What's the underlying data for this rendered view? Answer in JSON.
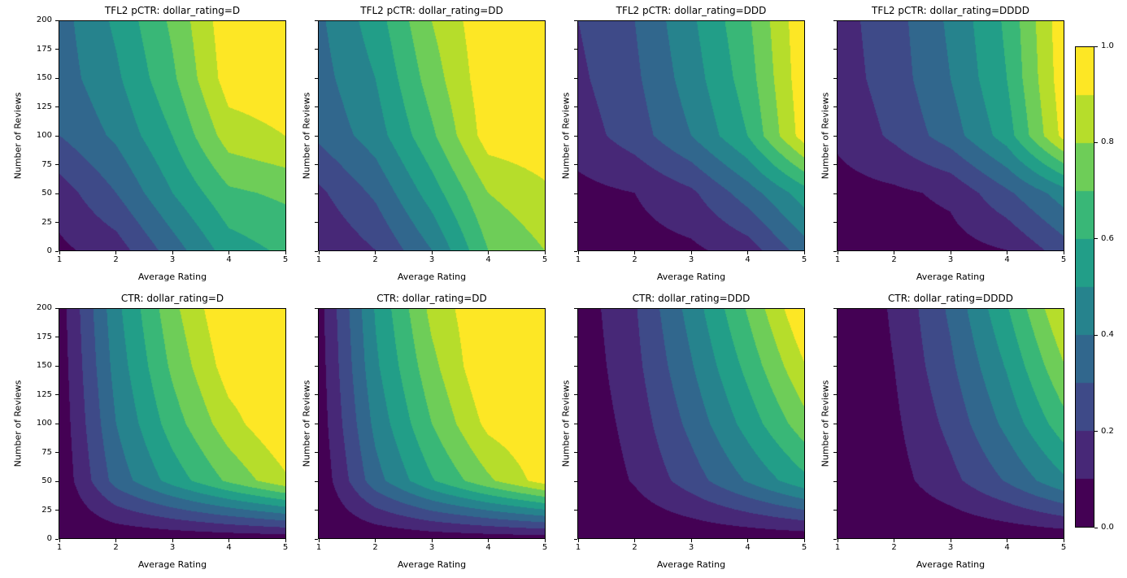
{
  "figure": {
    "background": "#ffffff",
    "colormap": {
      "name": "viridis",
      "stops": [
        "#440154",
        "#482475",
        "#414487",
        "#355f8d",
        "#2a788e",
        "#21918c",
        "#22a884",
        "#44bf70",
        "#7ad151",
        "#bddf26",
        "#fde725"
      ]
    },
    "colorbar": {
      "vmin": 0.0,
      "vmax": 1.0,
      "ticks": [
        "0.0",
        "0.2",
        "0.4",
        "0.6",
        "0.8",
        "1.0"
      ]
    }
  },
  "contour": {
    "levels": [
      0.0,
      0.1,
      0.2,
      0.3,
      0.4,
      0.5,
      0.6,
      0.7,
      0.8,
      0.9,
      1.0
    ]
  },
  "axes": {
    "xlabel": "Average Rating",
    "ylabel": "Number of Reviews",
    "xticks": [
      "1",
      "2",
      "3",
      "4",
      "5"
    ],
    "yticks": [
      "0",
      "25",
      "50",
      "75",
      "100",
      "125",
      "150",
      "175",
      "200"
    ],
    "xlim": [
      1,
      5
    ],
    "ylim": [
      0,
      200
    ],
    "grid": false,
    "layout": "2 rows x 4 cols, shared colorbar right"
  },
  "chart_data": [
    {
      "type": "contour_filled",
      "title": "TFL2 pCTR: dollar_rating=D",
      "xlabel": "Average Rating",
      "ylabel": "Number of Reviews",
      "x": [
        1,
        2,
        3,
        4,
        5
      ],
      "y": [
        0,
        50,
        100,
        150,
        200
      ],
      "z": [
        [
          0.08,
          0.15,
          0.35,
          0.55,
          0.62
        ],
        [
          0.15,
          0.3,
          0.5,
          0.68,
          0.72
        ],
        [
          0.3,
          0.42,
          0.6,
          0.85,
          0.9
        ],
        [
          0.35,
          0.48,
          0.68,
          0.95,
          0.97
        ],
        [
          0.36,
          0.52,
          0.72,
          0.97,
          0.98
        ]
      ]
    },
    {
      "type": "contour_filled",
      "title": "TFL2 pCTR: dollar_rating=DD",
      "xlabel": "Average Rating",
      "ylabel": "Number of Reviews",
      "x": [
        1,
        2,
        3,
        4,
        5
      ],
      "y": [
        0,
        50,
        100,
        150,
        200
      ],
      "z": [
        [
          0.1,
          0.2,
          0.4,
          0.7,
          0.8
        ],
        [
          0.18,
          0.32,
          0.55,
          0.8,
          0.88
        ],
        [
          0.32,
          0.45,
          0.68,
          0.95,
          0.97
        ],
        [
          0.36,
          0.5,
          0.75,
          0.97,
          0.98
        ],
        [
          0.38,
          0.55,
          0.8,
          0.98,
          0.98
        ]
      ]
    },
    {
      "type": "contour_filled",
      "title": "TFL2 pCTR: dollar_rating=DDD",
      "xlabel": "Average Rating",
      "ylabel": "Number of Reviews",
      "x": [
        1,
        2,
        3,
        4,
        5
      ],
      "y": [
        0,
        50,
        100,
        150,
        200
      ],
      "z": [
        [
          0.05,
          0.06,
          0.08,
          0.15,
          0.35
        ],
        [
          0.07,
          0.1,
          0.18,
          0.35,
          0.55
        ],
        [
          0.15,
          0.25,
          0.4,
          0.6,
          0.95
        ],
        [
          0.18,
          0.28,
          0.45,
          0.65,
          0.97
        ],
        [
          0.2,
          0.3,
          0.48,
          0.68,
          0.98
        ]
      ]
    },
    {
      "type": "contour_filled",
      "title": "TFL2 pCTR: dollar_rating=DDDD",
      "xlabel": "Average Rating",
      "ylabel": "Number of Reviews",
      "x": [
        1,
        2,
        3,
        4,
        5
      ],
      "y": [
        0,
        50,
        100,
        150,
        200
      ],
      "z": [
        [
          0.04,
          0.05,
          0.06,
          0.1,
          0.25
        ],
        [
          0.06,
          0.08,
          0.12,
          0.28,
          0.45
        ],
        [
          0.12,
          0.22,
          0.35,
          0.55,
          0.93
        ],
        [
          0.15,
          0.25,
          0.4,
          0.6,
          0.96
        ],
        [
          0.16,
          0.26,
          0.42,
          0.62,
          0.97
        ]
      ]
    },
    {
      "type": "contour_filled",
      "title": "CTR: dollar_rating=D",
      "xlabel": "Average Rating",
      "ylabel": "Number of Reviews",
      "x": [
        1,
        2,
        3,
        4,
        5
      ],
      "y": [
        0,
        50,
        100,
        150,
        200
      ],
      "z": [
        [
          0.0,
          0.02,
          0.03,
          0.04,
          0.05
        ],
        [
          0.02,
          0.34,
          0.54,
          0.72,
          0.88
        ],
        [
          0.03,
          0.4,
          0.65,
          0.86,
          1.0
        ],
        [
          0.04,
          0.44,
          0.72,
          0.95,
          1.0
        ],
        [
          0.05,
          0.47,
          0.77,
          1.0,
          1.0
        ]
      ]
    },
    {
      "type": "contour_filled",
      "title": "CTR: dollar_rating=DD",
      "xlabel": "Average Rating",
      "ylabel": "Number of Reviews",
      "x": [
        1,
        2,
        3,
        4,
        5
      ],
      "y": [
        0,
        50,
        100,
        150,
        200
      ],
      "z": [
        [
          0.0,
          0.02,
          0.04,
          0.05,
          0.06
        ],
        [
          0.02,
          0.36,
          0.59,
          0.78,
          0.95
        ],
        [
          0.04,
          0.43,
          0.7,
          0.93,
          1.0
        ],
        [
          0.05,
          0.48,
          0.77,
          1.0,
          1.0
        ],
        [
          0.06,
          0.51,
          0.83,
          1.0,
          1.0
        ]
      ]
    },
    {
      "type": "contour_filled",
      "title": "CTR: dollar_rating=DDD",
      "xlabel": "Average Rating",
      "ylabel": "Number of Reviews",
      "x": [
        1,
        2,
        3,
        4,
        5
      ],
      "y": [
        0,
        50,
        100,
        150,
        200
      ],
      "z": [
        [
          0.0,
          0.01,
          0.02,
          0.03,
          0.04
        ],
        [
          0.01,
          0.11,
          0.25,
          0.41,
          0.57
        ],
        [
          0.02,
          0.14,
          0.33,
          0.54,
          0.76
        ],
        [
          0.03,
          0.17,
          0.39,
          0.63,
          0.89
        ],
        [
          0.04,
          0.19,
          0.44,
          0.71,
          1.0
        ]
      ]
    },
    {
      "type": "contour_filled",
      "title": "CTR: dollar_rating=DDDD",
      "xlabel": "Average Rating",
      "ylabel": "Number of Reviews",
      "x": [
        1,
        2,
        3,
        4,
        5
      ],
      "y": [
        0,
        50,
        100,
        150,
        200
      ],
      "z": [
        [
          0.0,
          0.01,
          0.01,
          0.02,
          0.03
        ],
        [
          0.01,
          0.06,
          0.17,
          0.31,
          0.48
        ],
        [
          0.02,
          0.08,
          0.23,
          0.43,
          0.66
        ],
        [
          0.03,
          0.1,
          0.28,
          0.51,
          0.79
        ],
        [
          0.03,
          0.11,
          0.32,
          0.59,
          0.9
        ]
      ]
    }
  ]
}
